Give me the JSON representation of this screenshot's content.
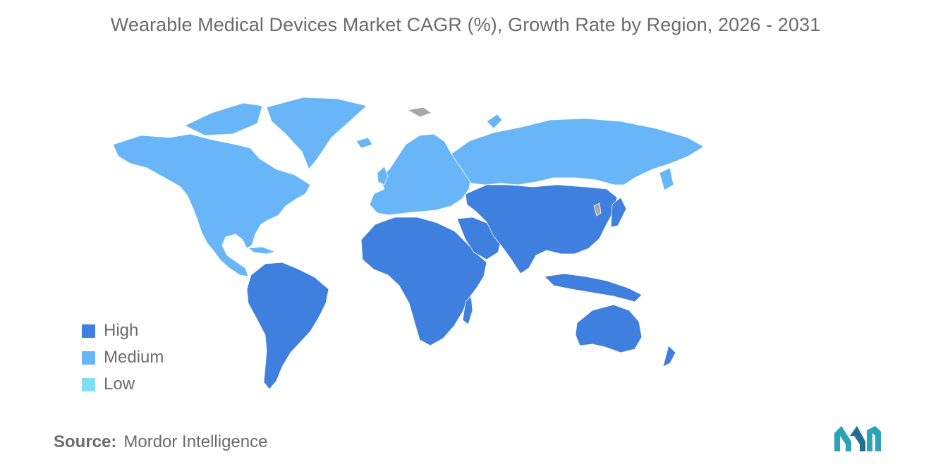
{
  "title": "Wearable Medical Devices Market CAGR (%), Growth Rate by Region, 2026 - 2031",
  "legend": [
    {
      "label": "High",
      "color": "#3f80de"
    },
    {
      "label": "Medium",
      "color": "#68b6f8"
    },
    {
      "label": "Low",
      "color": "#7fdff0"
    }
  ],
  "no_data_color": "#a8a8a8",
  "regions": [
    {
      "name": "North America",
      "category": "Medium"
    },
    {
      "name": "Europe",
      "category": "Medium"
    },
    {
      "name": "Asia Pacific",
      "category": "High"
    },
    {
      "name": "South America",
      "category": "High"
    },
    {
      "name": "Middle East and Africa",
      "category": "High"
    }
  ],
  "source": {
    "label": "Source:",
    "value": "Mordor Intelligence"
  },
  "logo_icon": "mordor-intelligence-logo"
}
